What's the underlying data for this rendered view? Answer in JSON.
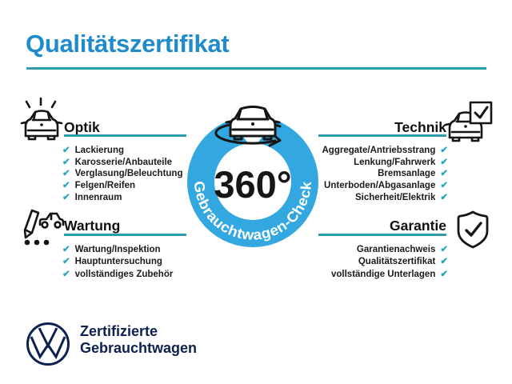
{
  "page": {
    "title": "Qualitätszertifikat"
  },
  "badge": {
    "degrees": "360°",
    "ring_label": "Gebrauchtwagen-Check"
  },
  "sections": {
    "optik": {
      "heading": "Optik",
      "items": [
        "Lackierung",
        "Karosserie/Anbauteile",
        "Verglasung/Beleuchtung",
        "Felgen/Reifen",
        "Innenraum"
      ]
    },
    "technik": {
      "heading": "Technik",
      "items": [
        "Aggregate/Antriebsstrang",
        "Lenkung/Fahrwerk",
        "Bremsanlage",
        "Unterboden/Abgasanlage",
        "Sicherheit/Elektrik"
      ]
    },
    "wartung": {
      "heading": "Wartung",
      "items": [
        "Wartung/Inspektion",
        "Hauptuntersuchung",
        "vollständiges Zubehör"
      ]
    },
    "garantie": {
      "heading": "Garantie",
      "items": [
        "Garantienachweis",
        "Qualitätszertifikat",
        "vollständige Unterlagen"
      ]
    }
  },
  "footer": {
    "line1": "Zertifizierte",
    "line2": "Gebrauchtwagen"
  },
  "icons": {
    "check": "✔",
    "optik": "car-sparkle-icon",
    "wartung": "service-pen-car-icon",
    "technik": "car-checkbox-icon",
    "garantie": "shield-check-icon",
    "badge_center": "car-rotation-icon",
    "brand": "vw-logo"
  },
  "colors": {
    "title_blue": "#1f8bca",
    "rule_teal": "#2e9dac",
    "check_cyan": "#27a6c3",
    "ring_blue": "#33a7e0",
    "vw_navy": "#0c2150",
    "ink": "#151515"
  }
}
